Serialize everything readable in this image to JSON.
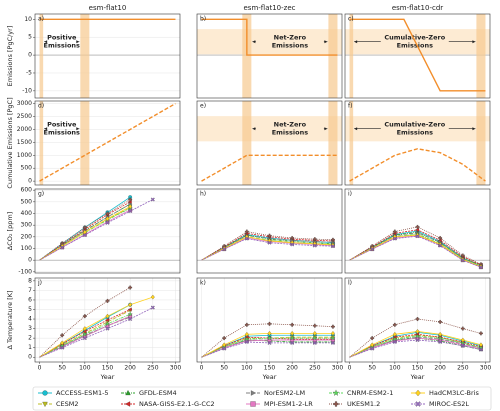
{
  "chart_data": [
    {
      "type": "line",
      "label": "a)",
      "title": "esm-flat10",
      "ylabel": "Emissions [PgC/yr]",
      "xlim": [
        -10,
        310
      ],
      "ylim": [
        -12,
        11.5
      ],
      "yticks": [
        10,
        5,
        0,
        -5,
        -10
      ],
      "zero_line": true,
      "spans": [
        [
          0,
          8
        ],
        [
          90,
          110
        ]
      ],
      "annotation": [
        "Positive",
        "Emissions"
      ],
      "x": [
        0,
        300
      ],
      "series": [
        {
          "color": "#f28e2b",
          "values": [
            10,
            10
          ]
        }
      ]
    },
    {
      "type": "line",
      "label": "b)",
      "title": "esm-flat10-zec",
      "xlim": [
        -10,
        310
      ],
      "ylim": [
        -12,
        11.5
      ],
      "zero_line": true,
      "spans": [
        [
          90,
          110
        ],
        [
          280,
          300
        ]
      ],
      "annotation": [
        "Net-Zero",
        "Emissions"
      ],
      "x": [
        0,
        100,
        100,
        300
      ],
      "series": [
        {
          "color": "#f28e2b",
          "values": [
            10,
            10,
            0,
            0
          ]
        }
      ]
    },
    {
      "type": "line",
      "label": "c)",
      "title": "esm-flat10-cdr",
      "xlim": [
        -10,
        310
      ],
      "ylim": [
        -12,
        11.5
      ],
      "zero_line": true,
      "spans": [
        [
          0,
          8
        ],
        [
          280,
          300
        ]
      ],
      "annotation": [
        "Cumulative-Zero",
        "Emissions"
      ],
      "x": [
        0,
        120,
        200,
        300
      ],
      "series": [
        {
          "color": "#f28e2b",
          "values": [
            10,
            10,
            -10,
            -10
          ]
        }
      ]
    },
    {
      "type": "line",
      "label": "d)",
      "ylabel": "Cumulative Emissions [PgC]",
      "xlim": [
        -10,
        310
      ],
      "ylim": [
        -150,
        3100
      ],
      "yticks": [
        0,
        500,
        1000,
        1500,
        2000,
        2500,
        3000
      ],
      "spans": [
        [
          0,
          8
        ],
        [
          90,
          110
        ]
      ],
      "annotation": [
        "Positive",
        "Emissions"
      ],
      "x": [
        0,
        300
      ],
      "series": [
        {
          "color": "#f28e2b",
          "dashed": true,
          "values": [
            0,
            3000
          ]
        }
      ]
    },
    {
      "type": "line",
      "label": "e)",
      "xlim": [
        -10,
        310
      ],
      "ylim": [
        -150,
        3100
      ],
      "spans": [
        [
          90,
          110
        ],
        [
          280,
          300
        ]
      ],
      "annotation": [
        "Net-Zero",
        "Emissions"
      ],
      "x": [
        0,
        100,
        300
      ],
      "series": [
        {
          "color": "#f28e2b",
          "dashed": true,
          "values": [
            0,
            1000,
            1000
          ]
        }
      ]
    },
    {
      "type": "line",
      "label": "f)",
      "xlim": [
        -10,
        310
      ],
      "ylim": [
        -150,
        3100
      ],
      "spans": [
        [
          0,
          8
        ],
        [
          280,
          300
        ]
      ],
      "annotation": [
        "Cumulative-Zero",
        "Emissions"
      ],
      "x": [
        0,
        100,
        150,
        200,
        250,
        300
      ],
      "series": [
        {
          "color": "#f28e2b",
          "dashed": true,
          "values": [
            0,
            1000,
            1250,
            1100,
            650,
            0
          ]
        }
      ]
    },
    {
      "type": "line",
      "label": "g)",
      "ylabel": "ΔCO₂ [ppm]",
      "xlim": [
        -10,
        310
      ],
      "ylim": [
        -110,
        610
      ],
      "yticks": [
        -100,
        0,
        100,
        200,
        300,
        400,
        500,
        600
      ],
      "zero_line": true,
      "x": [
        0,
        50,
        100,
        150,
        200,
        250,
        290
      ],
      "series": [
        {
          "values": [
            0,
            140,
            280,
            410,
            540,
            null,
            null
          ]
        },
        {
          "values": [
            0,
            120,
            240,
            350,
            450,
            null,
            null
          ]
        },
        {
          "values": [
            0,
            130,
            255,
            370,
            480,
            null,
            null
          ]
        },
        {
          "values": [
            0,
            135,
            265,
            390,
            500,
            null,
            null
          ]
        },
        {
          "values": [
            0,
            125,
            250,
            370,
            480,
            null,
            null
          ]
        },
        {
          "values": [
            0,
            110,
            220,
            330,
            430,
            null,
            null
          ]
        },
        {
          "values": [
            0,
            120,
            235,
            345,
            445,
            null,
            null
          ]
        },
        {
          "values": [
            0,
            145,
            280,
            400,
            520,
            null,
            null
          ]
        },
        {
          "values": [
            0,
            120,
            240,
            355,
            460,
            null,
            null
          ]
        },
        {
          "values": [
            0,
            110,
            215,
            320,
            420,
            520,
            null
          ]
        }
      ]
    },
    {
      "type": "line",
      "label": "h)",
      "xlim": [
        -10,
        310
      ],
      "ylim": [
        -110,
        610
      ],
      "zero_line": true,
      "x": [
        0,
        50,
        100,
        150,
        200,
        250,
        290
      ],
      "series": [
        {
          "values": [
            0,
            110,
            220,
            190,
            170,
            160,
            150
          ]
        },
        {
          "values": [
            0,
            100,
            200,
            170,
            150,
            140,
            130
          ]
        },
        {
          "values": [
            0,
            110,
            215,
            180,
            160,
            150,
            140
          ]
        },
        {
          "values": [
            0,
            115,
            230,
            200,
            180,
            170,
            165
          ]
        },
        {
          "values": [
            0,
            105,
            210,
            185,
            170,
            160,
            155
          ]
        },
        {
          "values": [
            0,
            95,
            190,
            160,
            145,
            135,
            125
          ]
        },
        {
          "values": [
            0,
            100,
            200,
            170,
            150,
            140,
            135
          ]
        },
        {
          "values": [
            0,
            120,
            245,
            210,
            190,
            180,
            175
          ]
        },
        {
          "values": [
            0,
            100,
            200,
            165,
            150,
            140,
            130
          ]
        },
        {
          "values": [
            0,
            95,
            185,
            150,
            135,
            125,
            120
          ]
        }
      ]
    },
    {
      "type": "line",
      "label": "i)",
      "xlim": [
        -10,
        310
      ],
      "ylim": [
        -110,
        610
      ],
      "zero_line": true,
      "x": [
        0,
        50,
        100,
        150,
        200,
        250,
        290
      ],
      "series": [
        {
          "values": [
            0,
            110,
            220,
            250,
            160,
            20,
            -50
          ]
        },
        {
          "values": [
            0,
            100,
            200,
            220,
            140,
            10,
            -55
          ]
        },
        {
          "values": [
            0,
            110,
            215,
            240,
            150,
            20,
            -45
          ]
        },
        {
          "values": [
            0,
            115,
            230,
            260,
            170,
            30,
            -40
          ]
        },
        {
          "values": [
            0,
            105,
            210,
            235,
            155,
            15,
            -50
          ]
        },
        {
          "values": [
            0,
            95,
            190,
            210,
            130,
            0,
            -60
          ]
        },
        {
          "values": [
            0,
            100,
            200,
            225,
            140,
            10,
            -50
          ]
        },
        {
          "values": [
            0,
            120,
            245,
            285,
            190,
            40,
            -35
          ]
        },
        {
          "values": [
            0,
            100,
            200,
            215,
            135,
            5,
            -55
          ]
        },
        {
          "values": [
            0,
            95,
            185,
            205,
            125,
            0,
            -60
          ]
        }
      ]
    },
    {
      "type": "line",
      "label": "j)",
      "ylabel": "Δ Temperature [K]",
      "xlabel": "Year",
      "xlim": [
        -10,
        310
      ],
      "ylim": [
        -0.5,
        8.3
      ],
      "yticks": [
        0,
        1,
        2,
        3,
        4,
        5,
        6,
        7,
        8
      ],
      "xticks": [
        0,
        50,
        100,
        150,
        200,
        250,
        300
      ],
      "x": [
        0,
        50,
        100,
        150,
        200,
        250,
        290
      ],
      "series": [
        {
          "values": [
            0,
            1.4,
            2.8,
            4.2,
            5.5,
            null,
            null
          ]
        },
        {
          "values": [
            0,
            1.3,
            2.5,
            3.7,
            4.9,
            null,
            null
          ]
        },
        {
          "values": [
            0,
            1.1,
            2.2,
            3.3,
            4.3,
            null,
            null
          ]
        },
        {
          "values": [
            0,
            1.4,
            2.7,
            3.9,
            5.0,
            null,
            null
          ]
        },
        {
          "values": [
            0,
            1.2,
            2.3,
            3.3,
            4.2,
            null,
            null
          ]
        },
        {
          "values": [
            0,
            1.1,
            2.2,
            3.3,
            4.3,
            null,
            null
          ]
        },
        {
          "values": [
            0,
            1.2,
            2.4,
            3.5,
            4.5,
            null,
            null
          ]
        },
        {
          "values": [
            0,
            2.3,
            4.3,
            5.9,
            7.3,
            null,
            null
          ]
        },
        {
          "values": [
            0,
            1.5,
            3.0,
            4.3,
            5.5,
            6.3,
            null
          ]
        },
        {
          "values": [
            0,
            1.0,
            2.0,
            3.0,
            4.0,
            5.2,
            null
          ]
        }
      ]
    },
    {
      "type": "line",
      "label": "k)",
      "xlabel": "Year",
      "xlim": [
        -10,
        310
      ],
      "ylim": [
        -0.5,
        8.3
      ],
      "xticks": [
        0,
        50,
        100,
        150,
        200,
        250,
        300
      ],
      "x": [
        0,
        50,
        100,
        150,
        200,
        250,
        290
      ],
      "series": [
        {
          "values": [
            0,
            1.2,
            2.2,
            2.3,
            2.3,
            2.3,
            2.3
          ]
        },
        {
          "values": [
            0,
            1.1,
            2.0,
            2.0,
            2.1,
            2.1,
            2.1
          ]
        },
        {
          "values": [
            0,
            1.0,
            1.8,
            1.7,
            1.6,
            1.6,
            1.6
          ]
        },
        {
          "values": [
            0,
            1.2,
            2.1,
            2.0,
            1.9,
            1.9,
            1.9
          ]
        },
        {
          "values": [
            0,
            1.0,
            1.8,
            1.8,
            1.8,
            1.8,
            1.8
          ]
        },
        {
          "values": [
            0,
            1.0,
            1.7,
            1.8,
            1.8,
            1.8,
            1.8
          ]
        },
        {
          "values": [
            0,
            1.1,
            1.9,
            2.0,
            2.0,
            2.0,
            2.0
          ]
        },
        {
          "values": [
            0,
            2.0,
            3.4,
            3.5,
            3.4,
            3.3,
            3.2
          ]
        },
        {
          "values": [
            0,
            1.3,
            2.4,
            2.5,
            2.5,
            2.5,
            2.5
          ]
        },
        {
          "values": [
            0,
            0.9,
            1.6,
            1.5,
            1.5,
            1.5,
            1.5
          ]
        }
      ]
    },
    {
      "type": "line",
      "label": "l)",
      "xlabel": "Year",
      "xlim": [
        -10,
        310
      ],
      "ylim": [
        -0.5,
        8.3
      ],
      "xticks": [
        0,
        50,
        100,
        150,
        200,
        250,
        300
      ],
      "x": [
        0,
        50,
        100,
        150,
        200,
        250,
        290
      ],
      "series": [
        {
          "values": [
            0,
            1.2,
            2.2,
            2.6,
            2.3,
            1.7,
            1.2
          ]
        },
        {
          "values": [
            0,
            1.1,
            2.0,
            2.3,
            2.1,
            1.5,
            1.0
          ]
        },
        {
          "values": [
            0,
            1.0,
            1.8,
            2.0,
            1.7,
            1.2,
            0.8
          ]
        },
        {
          "values": [
            0,
            1.2,
            2.1,
            2.4,
            2.1,
            1.6,
            1.1
          ]
        },
        {
          "values": [
            0,
            1.0,
            1.8,
            2.1,
            1.9,
            1.4,
            1.0
          ]
        },
        {
          "values": [
            0,
            1.0,
            1.7,
            2.0,
            1.8,
            1.3,
            0.9
          ]
        },
        {
          "values": [
            0,
            1.1,
            1.9,
            2.2,
            2.0,
            1.5,
            1.0
          ]
        },
        {
          "values": [
            0,
            2.0,
            3.4,
            4.0,
            3.7,
            3.0,
            2.5
          ]
        },
        {
          "values": [
            0,
            1.3,
            2.4,
            2.7,
            2.4,
            1.8,
            1.3
          ]
        },
        {
          "values": [
            0,
            0.9,
            1.6,
            1.8,
            1.6,
            1.2,
            0.8
          ]
        }
      ]
    }
  ],
  "legend": [
    {
      "name": "ACCESS-ESM1-5",
      "color": "#17becf",
      "marker": "o",
      "dash": ""
    },
    {
      "name": "CESM2",
      "color": "#bcbd22",
      "marker": "v",
      "dash": "4,1.5"
    },
    {
      "name": "GFDL-ESM4",
      "color": "#2ca02c",
      "marker": "^",
      "dash": "3,1,1,1"
    },
    {
      "name": "NASA-GISS-E2.1-G-CC2",
      "color": "#d62728",
      "marker": "<",
      "dash": "2,1"
    },
    {
      "name": "NorESM2-LM",
      "color": "#7f7f7f",
      "marker": ">",
      "dash": "4,1.5"
    },
    {
      "name": "MPI-ESM1-2-LR",
      "color": "#e377c2",
      "marker": "s",
      "dash": ""
    },
    {
      "name": "CNRM-ESM2-1",
      "color": "#5bd85b",
      "marker": "*",
      "dash": "3,1,1,1"
    },
    {
      "name": "UKESM1.2",
      "color": "#8c564b",
      "marker": "P",
      "dash": "1,1"
    },
    {
      "name": "HadCM3LC-Bris",
      "color": "#ffd21f",
      "marker": "D",
      "dash": ""
    },
    {
      "name": "MIROC-ES2L",
      "color": "#9467bd",
      "marker": "X",
      "dash": "2,1"
    }
  ]
}
